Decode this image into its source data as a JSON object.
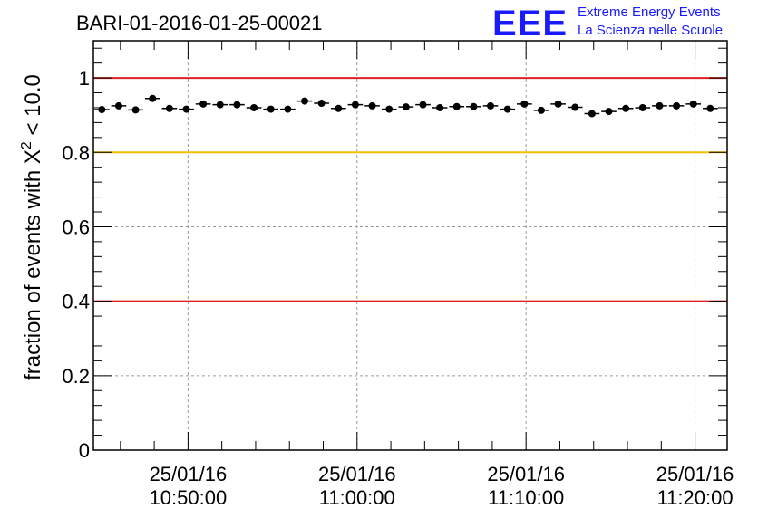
{
  "chart_data": {
    "type": "scatter",
    "title": "BARI-01-2016-01-25-00021",
    "ylabel": "fraction of events with X",
    "ylabel_sup": "2",
    "ylabel_tail": " < 10.0",
    "logo": {
      "text": "EEE",
      "line1": "Extreme Energy Events",
      "line2": "La Scienza nelle Scuole",
      "color": "#1a1aff"
    },
    "ylim": [
      0,
      1.1
    ],
    "y_ticks": [
      {
        "value": 0,
        "label": "0"
      },
      {
        "value": 0.2,
        "label": "0.2"
      },
      {
        "value": 0.4,
        "label": "0.4"
      },
      {
        "value": 0.6,
        "label": "0.6"
      },
      {
        "value": 0.8,
        "label": "0.8"
      },
      {
        "value": 1,
        "label": "1"
      }
    ],
    "xlim_minutes": [
      0,
      37.5
    ],
    "x_ticks": [
      {
        "minute": 5.6,
        "date": "25/01/16",
        "time": "10:50:00"
      },
      {
        "minute": 15.6,
        "date": "25/01/16",
        "time": "11:00:00"
      },
      {
        "minute": 25.6,
        "date": "25/01/16",
        "time": "11:10:00"
      },
      {
        "minute": 35.6,
        "date": "25/01/16",
        "time": "11:20:00"
      }
    ],
    "reference_lines": [
      {
        "value": 1.0,
        "color": "#e02020"
      },
      {
        "value": 0.8,
        "color": "#f5c000"
      },
      {
        "value": 0.4,
        "color": "#e02020"
      }
    ],
    "grid": true,
    "bin_width_minutes": 1.0,
    "series": [
      {
        "x_minutes": [
          0.5,
          1.5,
          2.5,
          3.5,
          4.5,
          5.5,
          6.5,
          7.5,
          8.5,
          9.5,
          10.5,
          11.5,
          12.5,
          13.5,
          14.5,
          15.5,
          16.5,
          17.5,
          18.5,
          19.5,
          20.5,
          21.5,
          22.5,
          23.5,
          24.5,
          25.5,
          26.5,
          27.5,
          28.5,
          29.5,
          30.5,
          31.5,
          32.5,
          33.5,
          34.5,
          35.5,
          36.5
        ],
        "values": [
          0.915,
          0.925,
          0.914,
          0.945,
          0.918,
          0.916,
          0.93,
          0.928,
          0.928,
          0.92,
          0.916,
          0.916,
          0.938,
          0.932,
          0.918,
          0.928,
          0.925,
          0.916,
          0.922,
          0.928,
          0.92,
          0.923,
          0.923,
          0.925,
          0.916,
          0.93,
          0.913,
          0.93,
          0.921,
          0.904,
          0.91,
          0.918,
          0.92,
          0.925,
          0.925,
          0.93,
          0.918
        ]
      }
    ]
  }
}
